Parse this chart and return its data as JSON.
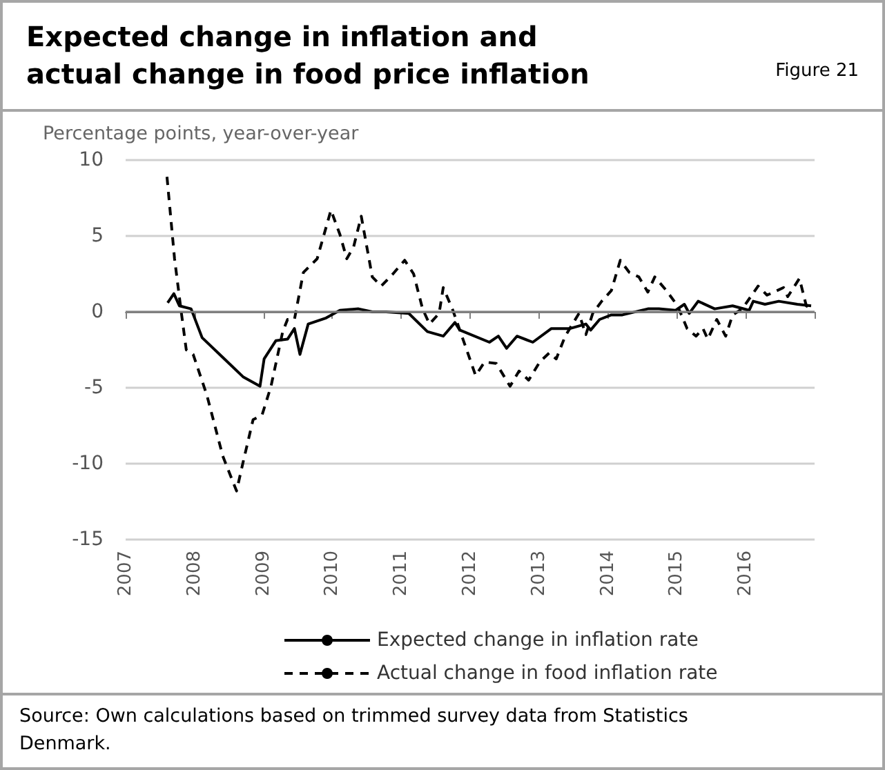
{
  "chart_data": {
    "type": "line",
    "title": "Expected change in inflation and actual change in food price inflation",
    "subtitle": "Figure 21",
    "ylabel": "Percentage points, year-over-year",
    "annotations": [
      "Source: Own calculations based on trimmed survey data from Statistics Denmark."
    ],
    "xlim": [
      2007,
      2017
    ],
    "xticks": [
      2007,
      2008,
      2009,
      2010,
      2011,
      2012,
      2013,
      2014,
      2015,
      2016,
      {
        "value": 2017,
        "label": null
      }
    ],
    "ylim": [
      -15,
      10
    ],
    "yticks": [
      -15,
      -10,
      -5,
      0,
      5,
      10
    ],
    "grid": "y",
    "legend": "bottom",
    "marker": "none",
    "ref_lines": [
      {
        "axis": "y",
        "value": 0,
        "color": "#808080"
      }
    ],
    "series": [
      {
        "name": "Expected change in inflation rate",
        "color": "#000000",
        "line_style": "solid",
        "x": [
          2007.61,
          2007.7,
          2007.78,
          2007.95,
          2008.11,
          2008.41,
          2008.71,
          2008.95,
          2009.01,
          2009.18,
          2009.35,
          2009.45,
          2009.53,
          2009.65,
          2009.91,
          2010.11,
          2010.38,
          2010.58,
          2010.78,
          2011.11,
          2011.38,
          2011.61,
          2011.78,
          2011.85,
          2012.28,
          2012.41,
          2012.53,
          2012.68,
          2012.91,
          2013.18,
          2013.45,
          2013.68,
          2013.75,
          2013.88,
          2014.05,
          2014.21,
          2014.58,
          2014.74,
          2014.98,
          2015.11,
          2015.18,
          2015.31,
          2015.55,
          2015.81,
          2016.05,
          2016.11,
          2016.28,
          2016.48,
          2016.75,
          2016.95
        ],
        "values": [
          0.6,
          1.2,
          0.4,
          0.2,
          -1.7,
          -3.0,
          -4.3,
          -4.9,
          -3.1,
          -1.9,
          -1.8,
          -1.1,
          -2.8,
          -0.8,
          -0.4,
          0.1,
          0.2,
          0.0,
          0.0,
          -0.1,
          -1.3,
          -1.6,
          -0.7,
          -1.2,
          -2.0,
          -1.6,
          -2.4,
          -1.6,
          -2.0,
          -1.1,
          -1.1,
          -0.8,
          -1.2,
          -0.5,
          -0.2,
          -0.2,
          0.2,
          0.2,
          0.1,
          0.5,
          -0.1,
          0.7,
          0.2,
          0.4,
          0.1,
          0.7,
          0.5,
          0.7,
          0.5,
          0.4
        ]
      },
      {
        "name": "Actual change in food inflation rate",
        "color": "#000000",
        "line_style": "dashed",
        "x": [
          2007.6,
          2007.71,
          2007.81,
          2007.88,
          2007.98,
          2008.18,
          2008.41,
          2008.61,
          2008.71,
          2008.85,
          2008.98,
          2009.11,
          2009.28,
          2009.35,
          2009.45,
          2009.58,
          2009.78,
          2009.98,
          2010.11,
          2010.21,
          2010.31,
          2010.42,
          2010.58,
          2010.71,
          2010.88,
          2011.05,
          2011.18,
          2011.31,
          2011.41,
          2011.55,
          2011.61,
          2011.75,
          2011.95,
          2012.08,
          2012.21,
          2012.38,
          2012.58,
          2012.71,
          2012.85,
          2013.01,
          2013.15,
          2013.25,
          2013.38,
          2013.58,
          2013.68,
          2013.78,
          2013.91,
          2014.05,
          2014.18,
          2014.31,
          2014.45,
          2014.58,
          2014.68,
          2014.85,
          2015.01,
          2015.15,
          2015.28,
          2015.38,
          2015.45,
          2015.58,
          2015.71,
          2015.81,
          2015.95,
          2016.18,
          2016.31,
          2016.55,
          2016.61,
          2016.78,
          2016.88,
          2016.95
        ],
        "values": [
          8.9,
          3.5,
          -0.1,
          -2.5,
          -2.8,
          -5.5,
          -9.5,
          -11.8,
          -9.8,
          -7.1,
          -6.8,
          -4.9,
          -1.3,
          -0.5,
          -0.5,
          2.6,
          3.5,
          6.7,
          5.1,
          3.5,
          4.3,
          6.3,
          2.3,
          1.7,
          2.5,
          3.4,
          2.5,
          0.2,
          -0.8,
          -0.1,
          1.6,
          0.1,
          -2.5,
          -4.2,
          -3.3,
          -3.4,
          -4.9,
          -3.9,
          -4.5,
          -3.3,
          -2.7,
          -3.1,
          -1.6,
          -0.1,
          -1.5,
          -0.1,
          0.7,
          1.4,
          3.4,
          2.6,
          2.3,
          1.3,
          2.3,
          1.4,
          0.4,
          -1.1,
          -1.6,
          -1.1,
          -1.8,
          -0.5,
          -1.6,
          -0.2,
          0.2,
          1.7,
          1.1,
          1.6,
          1.0,
          2.2,
          0.4,
          0.2
        ]
      }
    ]
  }
}
